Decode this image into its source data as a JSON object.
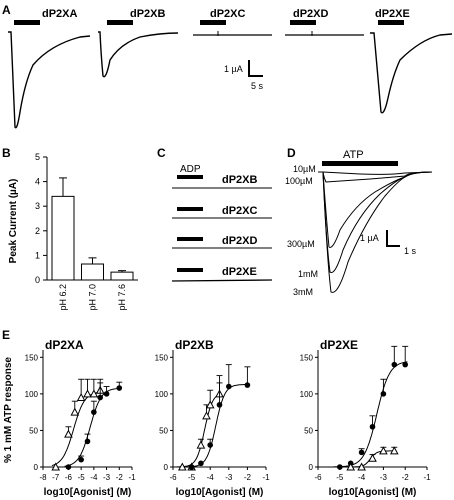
{
  "panel_labels": {
    "a": "A",
    "b": "B",
    "c": "C",
    "d": "D",
    "e": "E"
  },
  "panel_a": {
    "traces": [
      "dP2XA",
      "dP2XB",
      "dP2XC",
      "dP2XD",
      "dP2XE"
    ],
    "scale_current": "1 µA",
    "scale_time": "5 s"
  },
  "panel_b": {
    "ylabel": "Peak Current (µA)",
    "yticks": [
      "0",
      "1",
      "2",
      "3",
      "4",
      "5"
    ]
  },
  "panel_c": {
    "agonist": "ADP",
    "traces": [
      "dP2XB",
      "dP2XC",
      "dP2XD",
      "dP2XE"
    ]
  },
  "panel_d": {
    "agonist": "ATP",
    "concentrations": [
      "10µM",
      "100µM",
      "300µM",
      "1mM",
      "3mM"
    ],
    "scale_current": "1 µA",
    "scale_time": "1 s"
  },
  "panel_e": {
    "ylabel": "% 1 mM ATP response",
    "yticks": [
      "0",
      "50",
      "100",
      "150"
    ]
  },
  "chart_data": [
    {
      "type": "bar",
      "panel": "B",
      "categories": [
        "pH 6.2",
        "pH 7.0",
        "pH 7.6"
      ],
      "values": [
        3.4,
        0.65,
        0.32
      ],
      "errors": [
        0.75,
        0.25,
        0.06
      ],
      "ylabel": "Peak Current (µA)",
      "ylim": [
        0,
        5
      ]
    },
    {
      "type": "scatter",
      "panel": "E",
      "title": "dP2XA",
      "xlabel": "log10[Agonist] (M)",
      "ylabel": "% 1 mM ATP response",
      "xlim": [
        -8,
        -1
      ],
      "ylim": [
        0,
        160
      ],
      "xticks": [
        "-8",
        "-7",
        "-6",
        "-5",
        "-4",
        "-3",
        "-2",
        "-1"
      ],
      "series": [
        {
          "marker": "open-triangle",
          "x": [
            -7,
            -6,
            -5.5,
            -5,
            -4.5,
            -4,
            -3.5
          ],
          "y": [
            0,
            45,
            75,
            95,
            100,
            100,
            105
          ],
          "err": [
            0,
            10,
            15,
            25,
            20,
            20,
            15
          ]
        },
        {
          "marker": "filled-circle",
          "x": [
            -6,
            -5,
            -4.5,
            -4,
            -3.5,
            -3,
            -2
          ],
          "y": [
            0,
            10,
            35,
            75,
            95,
            100,
            108
          ],
          "err": [
            0,
            5,
            10,
            15,
            20,
            10,
            8
          ]
        }
      ]
    },
    {
      "type": "scatter",
      "panel": "E",
      "title": "dP2XB",
      "xlabel": "log10[Agonist] (M)",
      "xlim": [
        -6,
        -1
      ],
      "ylim": [
        0,
        160
      ],
      "xticks": [
        "-6",
        "-5",
        "-4",
        "-3",
        "-2",
        "-1"
      ],
      "series": [
        {
          "marker": "open-triangle",
          "x": [
            -5.5,
            -5,
            -4.5,
            -4.2,
            -4,
            -3.5
          ],
          "y": [
            0,
            0,
            30,
            70,
            85,
            100
          ],
          "err": [
            0,
            0,
            8,
            15,
            20,
            25
          ]
        },
        {
          "marker": "filled-circle",
          "x": [
            -5,
            -4.5,
            -4,
            -3.5,
            -3,
            -2
          ],
          "y": [
            0,
            5,
            30,
            85,
            110,
            112
          ],
          "err": [
            0,
            0,
            8,
            30,
            30,
            25
          ]
        }
      ]
    },
    {
      "type": "scatter",
      "panel": "E",
      "title": "dP2XE",
      "xlabel": "log10[Agonist] (M)",
      "xlim": [
        -6,
        -1
      ],
      "ylim": [
        0,
        160
      ],
      "xticks": [
        "-6",
        "-5",
        "-4",
        "-3",
        "-2",
        "-1"
      ],
      "series": [
        {
          "marker": "filled-circle",
          "x": [
            -5,
            -4.5,
            -4,
            -3.5,
            -3,
            -2.5,
            -2
          ],
          "y": [
            0,
            5,
            20,
            55,
            100,
            140,
            140
          ],
          "err": [
            0,
            0,
            5,
            15,
            20,
            25,
            25
          ]
        },
        {
          "marker": "open-triangle",
          "x": [
            -4.5,
            -4,
            -3.5,
            -3,
            -2.5
          ],
          "y": [
            0,
            0,
            12,
            22,
            22
          ],
          "err": [
            0,
            0,
            5,
            5,
            5
          ]
        }
      ]
    }
  ]
}
